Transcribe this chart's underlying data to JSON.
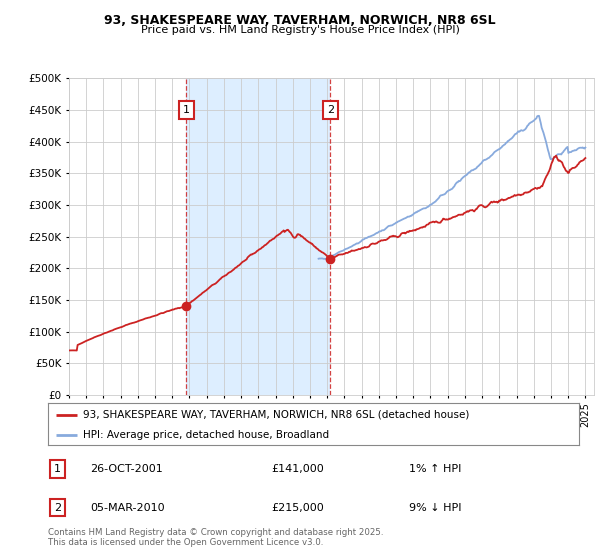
{
  "title1": "93, SHAKESPEARE WAY, TAVERHAM, NORWICH, NR8 6SL",
  "title2": "Price paid vs. HM Land Registry's House Price Index (HPI)",
  "legend_line1": "93, SHAKESPEARE WAY, TAVERHAM, NORWICH, NR8 6SL (detached house)",
  "legend_line2": "HPI: Average price, detached house, Broadland",
  "footer": "Contains HM Land Registry data © Crown copyright and database right 2025.\nThis data is licensed under the Open Government Licence v3.0.",
  "red_color": "#cc2222",
  "blue_color": "#88aadd",
  "highlight_color": "#ddeeff",
  "bg_color": "#ffffff",
  "grid_color": "#cccccc",
  "ylim": [
    0,
    500000
  ],
  "yticks": [
    0,
    50000,
    100000,
    150000,
    200000,
    250000,
    300000,
    350000,
    400000,
    450000,
    500000
  ],
  "marker1_x": 2001.82,
  "marker1_y": 141000,
  "marker2_x": 2010.18,
  "marker2_y": 215000,
  "xmin": 1995,
  "xmax": 2025.5
}
